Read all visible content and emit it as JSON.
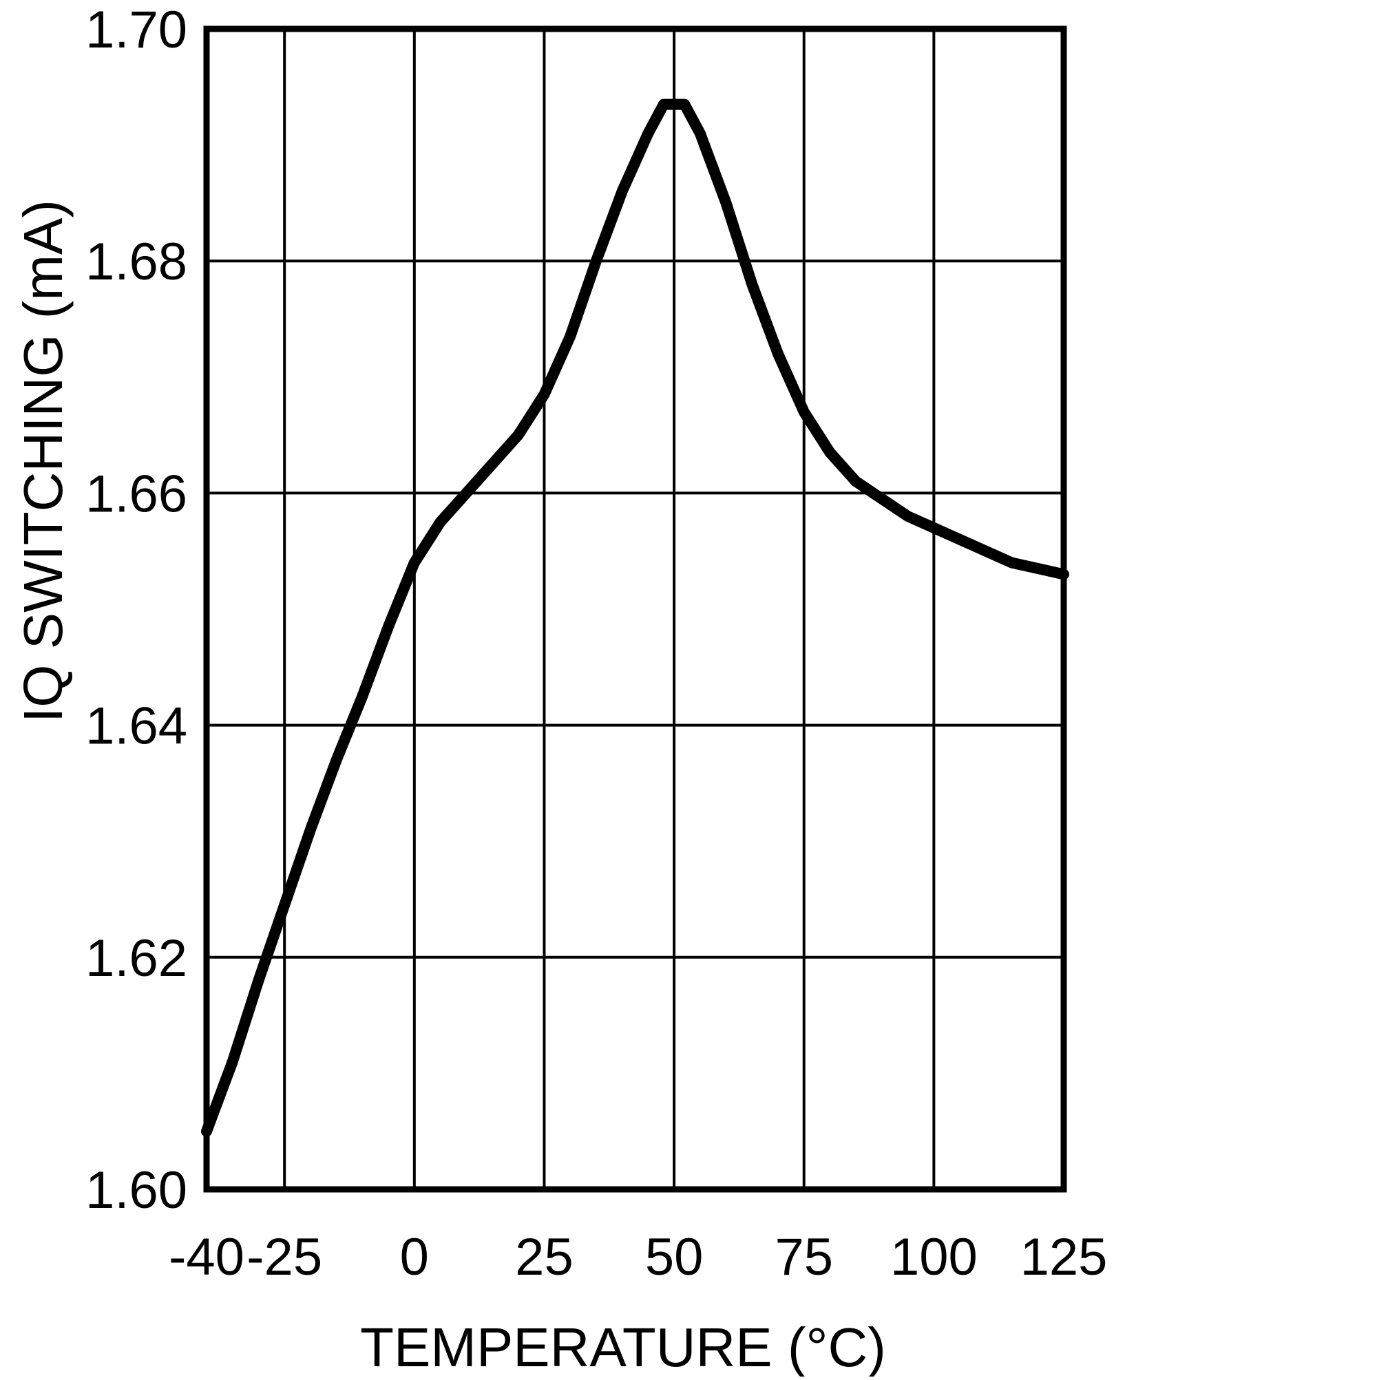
{
  "chart_data": {
    "type": "line",
    "title": "",
    "xlabel": "TEMPERATURE (°C)",
    "ylabel": "IQ SWITCHING (mA)",
    "xlim": [
      -40,
      125
    ],
    "ylim": [
      1.6,
      1.7
    ],
    "x_ticks": [
      -40,
      -25,
      0,
      25,
      50,
      75,
      100,
      125
    ],
    "y_ticks": [
      1.6,
      1.62,
      1.64,
      1.66,
      1.68,
      1.7
    ],
    "grid": true,
    "legend": false,
    "line_color": "#000000",
    "series": [
      {
        "x": [
          -40,
          -35,
          -30,
          -25,
          -20,
          -15,
          -10,
          -5,
          0,
          5,
          10,
          15,
          20,
          25,
          30,
          35,
          40,
          45,
          48,
          52,
          55,
          60,
          65,
          70,
          75,
          80,
          85,
          90,
          95,
          100,
          105,
          110,
          115,
          120,
          125
        ],
        "y": [
          1.605,
          1.611,
          1.618,
          1.6245,
          1.631,
          1.637,
          1.6425,
          1.6485,
          1.654,
          1.6575,
          1.66,
          1.6625,
          1.665,
          1.6685,
          1.6735,
          1.68,
          1.686,
          1.691,
          1.6935,
          1.6935,
          1.691,
          1.685,
          1.678,
          1.672,
          1.667,
          1.6635,
          1.661,
          1.6595,
          1.658,
          1.657,
          1.656,
          1.655,
          1.654,
          1.6535,
          1.653
        ]
      }
    ]
  }
}
